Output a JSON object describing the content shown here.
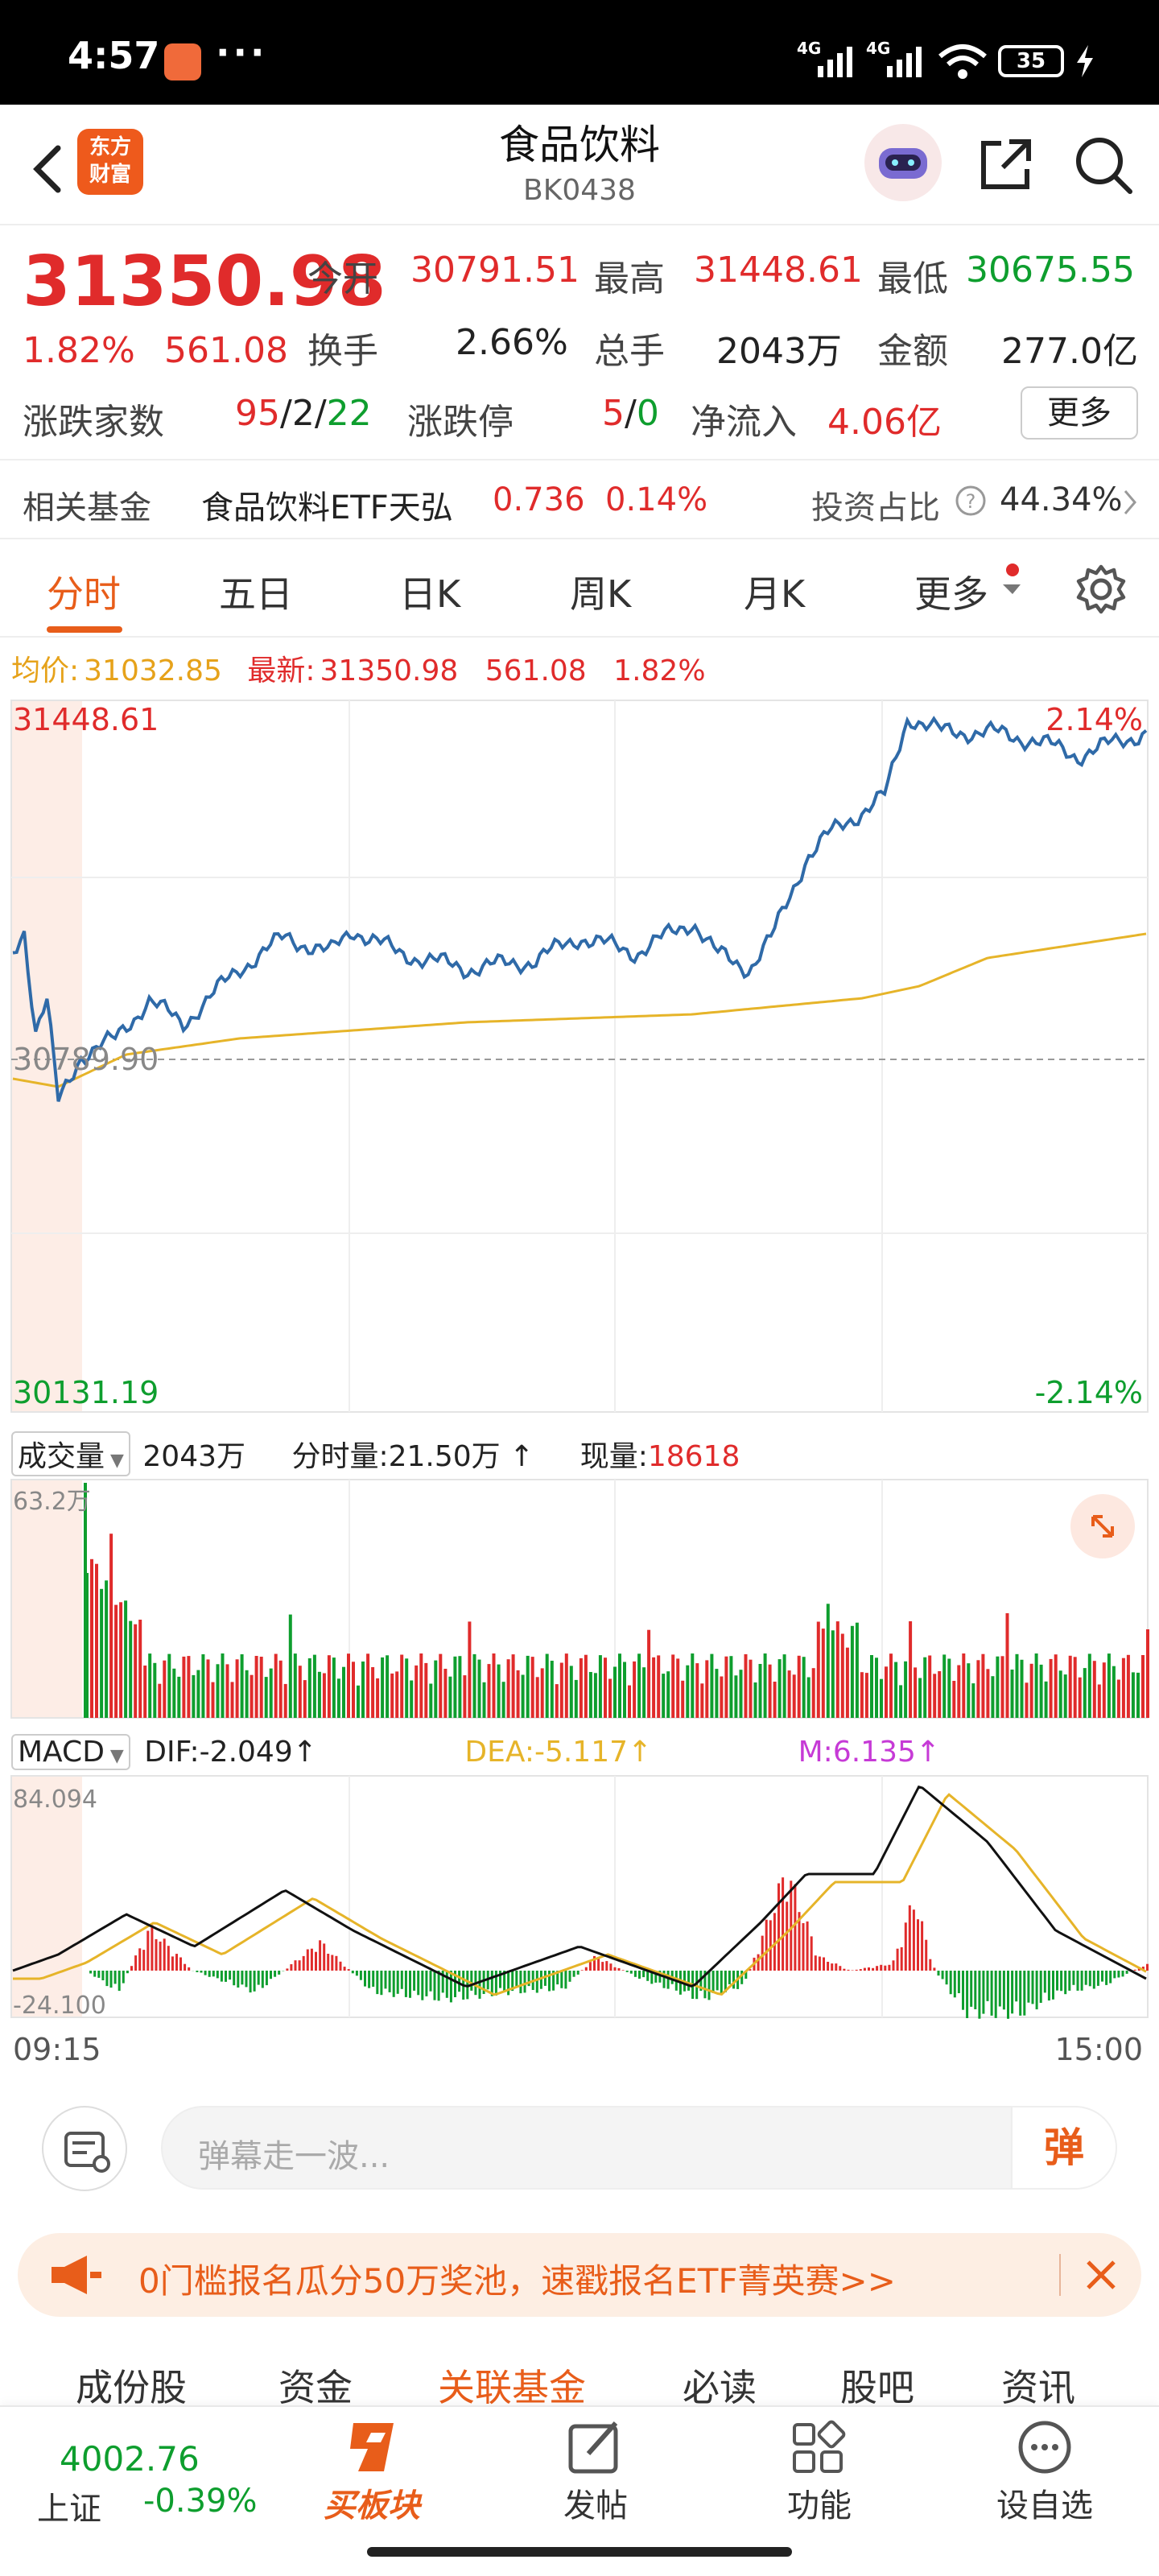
{
  "status": {
    "time": "4:57",
    "more": "···",
    "sig1": "4G",
    "sig2": "4G",
    "battery": "35"
  },
  "header": {
    "brand": "东方\n财富",
    "brand_line1": "东方",
    "brand_line2": "财富",
    "title": "食品饮料",
    "code": "BK0438"
  },
  "quote": {
    "price": "31350.98",
    "change_pct": "1.82%",
    "change_abs": "561.08",
    "open_label": "今开",
    "open": "30791.51",
    "high_label": "最高",
    "high": "31448.61",
    "low_label": "最低",
    "low": "30675.55",
    "turnover_label": "换手",
    "turnover": "2.66%",
    "volume_label": "总手",
    "volume": "2043万",
    "amount_label": "金额",
    "amount": "277.0亿",
    "updown_label": "涨跌家数",
    "up_count": "95",
    "flat_count": "2",
    "down_count": "22",
    "sep": "/",
    "limit_label": "涨跌停",
    "limit_up": "5",
    "limit_down": "0",
    "netflow_label": "净流入",
    "netflow": "4.06亿",
    "more_label": "更多"
  },
  "fund": {
    "label": "相关基金",
    "name": "食品饮料ETF天弘",
    "price": "0.736",
    "pct": "0.14%",
    "ratio_label": "投资占比",
    "ratio": "44.34%"
  },
  "tabs": [
    {
      "label": "分时"
    },
    {
      "label": "五日"
    },
    {
      "label": "日K"
    },
    {
      "label": "周K"
    },
    {
      "label": "月K"
    },
    {
      "label": "更多"
    }
  ],
  "chart": {
    "avg_label": "均价:",
    "avg": "31032.85",
    "latest_label": "最新:",
    "latest": "31350.98",
    "latest_change": "561.08",
    "latest_pct": "1.82%",
    "y_max": "31448.61",
    "y_min": "30131.19",
    "y_mid": "30789.90",
    "pct_max": "2.14%",
    "pct_min": "-2.14%",
    "vol_label": "成交量",
    "vol_total": "2043万",
    "vol_min_label": "分时量:",
    "vol_min": "21.50万",
    "vol_now_label": "现量:",
    "vol_now": "18618",
    "vol_max": "63.2万",
    "macd_label": "MACD",
    "dif": "DIF:-2.049",
    "dea": "DEA:-5.117",
    "m": "M:6.135",
    "macd_max": "84.094",
    "macd_min": "-24.100",
    "t_start": "09:15",
    "t_end": "15:00",
    "colors": {
      "price_line": "#2f6aa8",
      "avg_line": "#e6b429",
      "up": "#e02b2b",
      "down": "#0e9e2e",
      "dif": "#111111",
      "dea": "#e6b429"
    }
  },
  "danmu": {
    "placeholder": "弹幕走一波...",
    "btn": "弹"
  },
  "promo": {
    "text": "0门槛报名瓜分50万奖池，速戳报名ETF菁英赛>>"
  },
  "subtabs": [
    {
      "label": "成份股"
    },
    {
      "label": "资金"
    },
    {
      "label": "关联基金"
    },
    {
      "label": "必读"
    },
    {
      "label": "股吧"
    },
    {
      "label": "资讯"
    }
  ],
  "nav": {
    "index_value": "4002.76",
    "index_name": "上证",
    "index_pct": "-0.39%",
    "items": [
      {
        "label": "买板块"
      },
      {
        "label": "发帖"
      },
      {
        "label": "功能"
      },
      {
        "label": "设自选"
      }
    ]
  }
}
